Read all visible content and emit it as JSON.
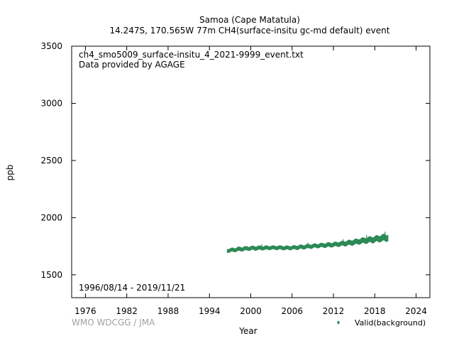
{
  "chart_data": {
    "type": "scatter",
    "title": "Samoa (Cape Matatula)",
    "subtitle": "14.247S, 170.565W 77m    CH4(surface-insitu gc-md default) event",
    "xlabel": "Year",
    "ylabel": "ppb",
    "xlim": [
      1974,
      2026
    ],
    "ylim": [
      1300,
      3500
    ],
    "x_ticks": [
      "1976",
      "1982",
      "1988",
      "1994",
      "2000",
      "2006",
      "2012",
      "2018",
      "2024"
    ],
    "y_ticks": [
      "1500",
      "2000",
      "2500",
      "3000",
      "3500"
    ],
    "annotation_file": "ch4_smo5009_surface-insitu_4_2021-9999_event.txt",
    "annotation_provider": "Data provided by AGAGE",
    "date_range": "1996/08/14 - 2019/11/21",
    "credit": "WMO WDCGG / JMA",
    "legend_position": "bottom-right",
    "series": [
      {
        "name": "Valid(background)",
        "color": "#2e8b57",
        "x": [
          1996.6,
          1997.0,
          1998.0,
          1999.0,
          2000.0,
          2001.0,
          2002.0,
          2003.0,
          2004.0,
          2005.0,
          2006.0,
          2007.0,
          2008.0,
          2009.0,
          2010.0,
          2011.0,
          2012.0,
          2013.0,
          2014.0,
          2015.0,
          2016.0,
          2017.0,
          2018.0,
          2019.0,
          2019.9
        ],
        "y": [
          1712,
          1714,
          1722,
          1728,
          1732,
          1734,
          1735,
          1737,
          1737,
          1735,
          1737,
          1741,
          1746,
          1751,
          1756,
          1760,
          1764,
          1770,
          1777,
          1785,
          1795,
          1803,
          1810,
          1820,
          1826
        ],
        "spread": [
          14,
          14,
          15,
          15,
          15,
          15,
          14,
          14,
          14,
          14,
          14,
          15,
          15,
          15,
          15,
          16,
          16,
          17,
          18,
          19,
          20,
          21,
          22,
          24,
          25
        ]
      }
    ]
  }
}
